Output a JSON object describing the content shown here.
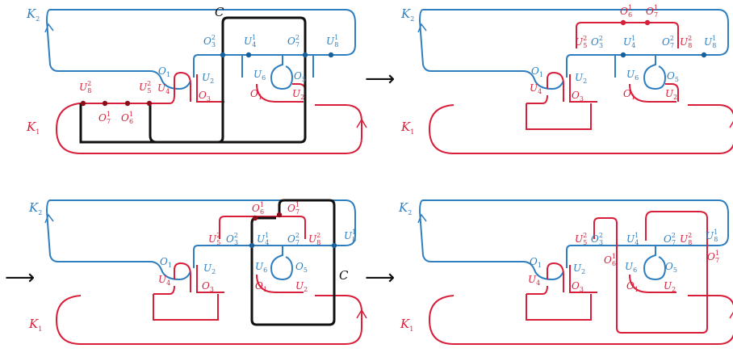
{
  "colors": {
    "blue": "#2f7fc0",
    "red": "#d81f3a",
    "black": "#111111",
    "bg": "#ffffff"
  },
  "components": {
    "k2": "K",
    "k2_sub": "2",
    "k1": "K",
    "k1_sub": "1",
    "curve": "C"
  },
  "arrow_glyph": "⟶",
  "labels": [
    {
      "base": "O",
      "sub": "1",
      "sup": ""
    },
    {
      "base": "U",
      "sub": "2",
      "sup": ""
    },
    {
      "base": "O",
      "sub": "3",
      "sup": ""
    },
    {
      "base": "U",
      "sub": "4",
      "sup": ""
    },
    {
      "base": "O",
      "sub": "5",
      "sup": ""
    },
    {
      "base": "U",
      "sub": "6",
      "sup": ""
    },
    {
      "base": "O",
      "sub": "3",
      "sup": "2"
    },
    {
      "base": "U",
      "sub": "4",
      "sup": "1"
    },
    {
      "base": "O",
      "sub": "7",
      "sup": "2"
    },
    {
      "base": "U",
      "sub": "8",
      "sup": "1"
    },
    {
      "base": "U",
      "sub": "8",
      "sup": "2"
    },
    {
      "base": "O",
      "sub": "7",
      "sup": "1"
    },
    {
      "base": "O",
      "sub": "6",
      "sup": "1"
    },
    {
      "base": "U",
      "sub": "5",
      "sup": "2"
    },
    {
      "base": "O",
      "sub": "6",
      "sup": "1"
    },
    {
      "base": "O",
      "sub": "7",
      "sup": "1"
    }
  ]
}
